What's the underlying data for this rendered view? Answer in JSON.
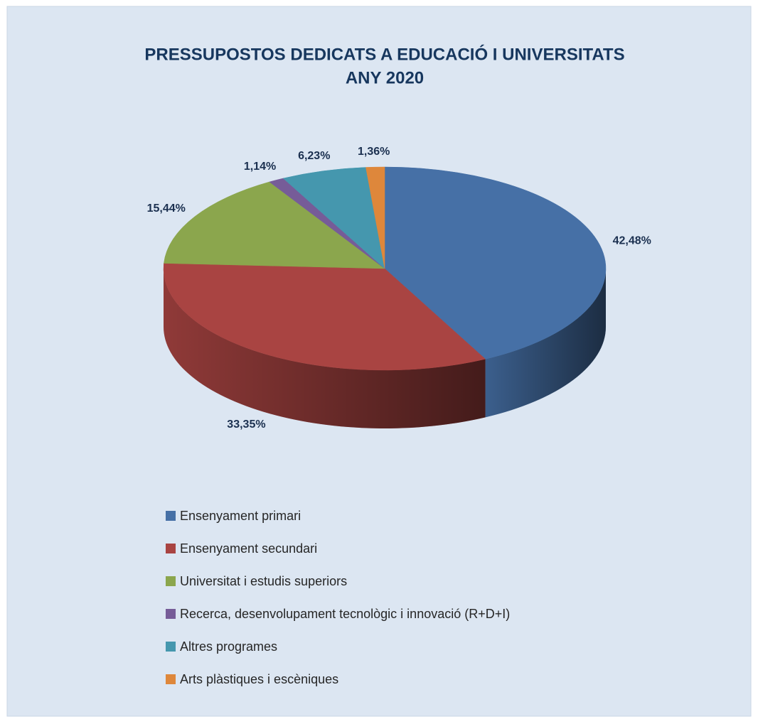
{
  "chart_data": {
    "type": "pie",
    "title": "PRESSUPOSTOS DEDICATS A EDUCACIÓ I UNIVERSITATS",
    "subtitle": "ANY 2020",
    "categories": [
      "Ensenyament primari",
      "Ensenyament secundari",
      "Universitat i estudis superiors",
      "Recerca, desenvolupament tecnològic i innovació (R+D+I)",
      "Altres programes",
      "Arts plàstiques i escèniques"
    ],
    "values": [
      42.48,
      33.35,
      15.44,
      1.14,
      6.23,
      1.36
    ],
    "value_labels": [
      "42,48%",
      "33,35%",
      "15,44%",
      "1,14%",
      "6,23%",
      "1,36%"
    ],
    "colors": [
      "#4670a6",
      "#a94442",
      "#8ba64d",
      "#765c98",
      "#4597ae",
      "#de873b"
    ],
    "legend": "bottom"
  }
}
